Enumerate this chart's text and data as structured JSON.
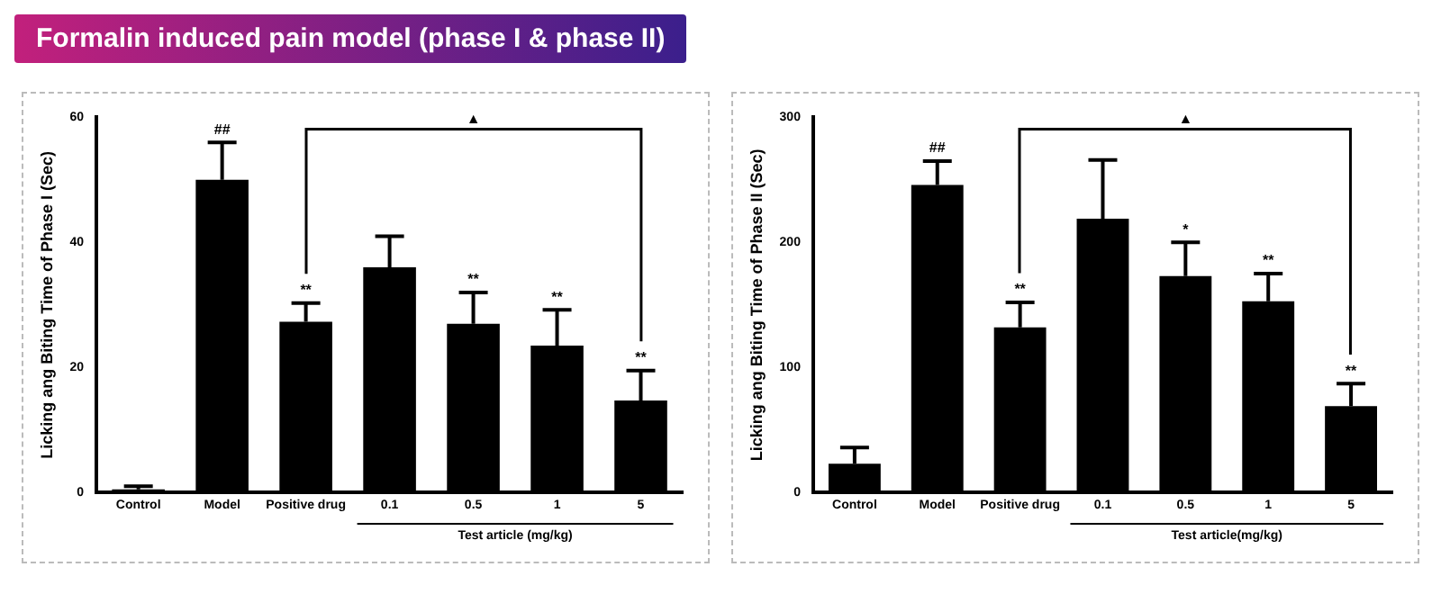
{
  "chart_data": [
    {
      "type": "bar",
      "title": "Formalin induced pain model (phase I & phase II)",
      "categories": [
        "Control",
        "Model",
        "Positive drug",
        "0.1",
        "0.5",
        "1",
        "5"
      ],
      "xlabel": "Test article (mg/kg)",
      "ylabel": "Licking ang Biting Time of Phase I (Sec)",
      "values": [
        0.5,
        50,
        27.3,
        36,
        27,
        23.5,
        14.7
      ],
      "color": "#000000",
      "errors": [
        [
          0.5,
          1
        ],
        [
          50,
          56
        ],
        [
          27.3,
          30.3
        ],
        [
          36,
          41
        ],
        [
          27,
          32
        ],
        [
          23.5,
          29.2
        ],
        [
          14.7,
          19.5
        ]
      ],
      "ylim": [
        0,
        60
      ],
      "yticks": [
        0,
        20,
        40,
        60
      ],
      "grid": false,
      "legend": false,
      "annotations": [
        {
          "text": "##",
          "x": "Model",
          "y": 56
        },
        {
          "text": "**",
          "x": "Positive drug",
          "y": 30.3
        },
        {
          "text": "**",
          "x": "0.5",
          "y": 32
        },
        {
          "text": "**",
          "x": "1",
          "y": 29.2
        },
        {
          "text": "**",
          "x": "5",
          "y": 19.5
        },
        "▲"
      ]
    },
    {
      "type": "bar",
      "categories": [
        "Control",
        "Model",
        "Positive drug",
        "0.1",
        "0.5",
        "1",
        "5"
      ],
      "xlabel": "Test article(mg/kg)",
      "ylabel": "Licking ang Biting Time of Phase II (Sec)",
      "values": [
        23,
        246,
        132,
        219,
        173,
        153,
        69
      ],
      "color": "#000000",
      "errors": [
        [
          23,
          36
        ],
        [
          246,
          265
        ],
        [
          132,
          152
        ],
        [
          219,
          266
        ],
        [
          173,
          200
        ],
        [
          153,
          175
        ],
        [
          69,
          87
        ]
      ],
      "ylim": [
        0,
        300
      ],
      "yticks": [
        0,
        100,
        200,
        300
      ],
      "grid": false,
      "legend": false,
      "annotations": [
        {
          "text": "##",
          "x": "Model",
          "y": 265
        },
        {
          "text": "**",
          "x": "Positive drug",
          "y": 152
        },
        {
          "text": "*",
          "x": "0.5",
          "y": 200
        },
        {
          "text": "**",
          "x": "1",
          "y": 175
        },
        {
          "text": "**",
          "x": "5",
          "y": 87
        },
        "▲"
      ]
    }
  ]
}
